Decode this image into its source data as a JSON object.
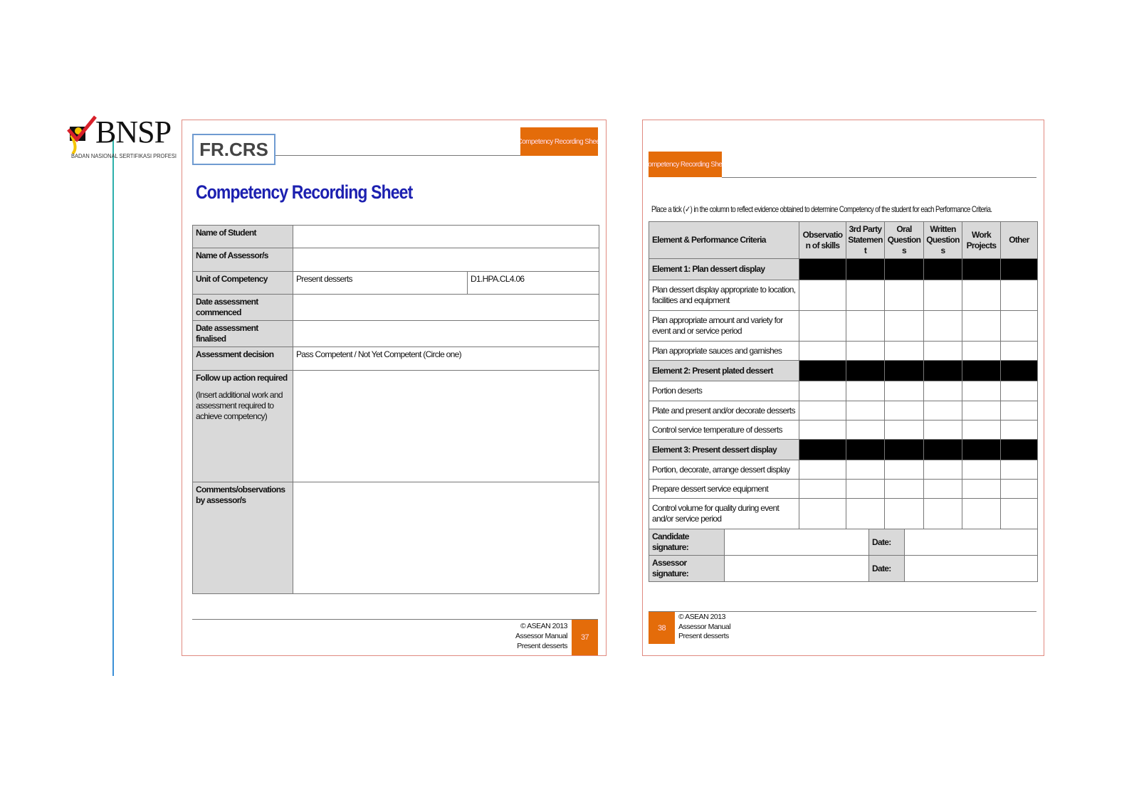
{
  "logo": {
    "name": "BNSP",
    "subtitle": "BADAN NASIONAL SERTIFIKASI PROFESI"
  },
  "left_page": {
    "form_code": "FR.CRS",
    "tab_label": "Competency Recording Sheet",
    "title": "Competency Recording Sheet",
    "rows": [
      {
        "label": "Name of Student",
        "value": ""
      },
      {
        "label": "Name of Assessor/s",
        "value": ""
      },
      {
        "label": "Unit of Competency",
        "value": "Present desserts",
        "code": "D1.HPA.CL4.06"
      },
      {
        "label": "Date assessment commenced",
        "value": ""
      },
      {
        "label": "Date assessment finalised",
        "value": ""
      },
      {
        "label": "Assessment decision",
        "value": "Pass Competent / Not Yet Competent (Circle one)"
      },
      {
        "label": "Follow up action required",
        "note": "(Insert additional work and assessment required to achieve competency)",
        "value": ""
      },
      {
        "label": "Comments/observations by assessor/s",
        "value": ""
      }
    ],
    "footer": {
      "copyright": "© ASEAN 2013",
      "manual": "Assessor Manual",
      "unit": "Present desserts",
      "page": "37"
    }
  },
  "right_page": {
    "tab_label": "Competency Recording Sheet",
    "instruction": "Place a tick (✓) in the column to reflect evidence obtained to determine Competency of the student for each Performance Criteria.",
    "headers": [
      "Element & Performance Criteria",
      "Observation of skills",
      "3rd Party Statement",
      "Oral Questions",
      "Written Questions",
      "Work Projects",
      "Other"
    ],
    "rows": [
      {
        "type": "element",
        "text": "Element 1: Plan dessert display"
      },
      {
        "type": "pc",
        "text": "Plan dessert display appropriate to location, facilities and equipment"
      },
      {
        "type": "pc",
        "text": "Plan appropriate amount and variety for event and or service period"
      },
      {
        "type": "pc",
        "text": "Plan appropriate sauces and garnishes"
      },
      {
        "type": "element",
        "text": "Element 2: Present plated dessert"
      },
      {
        "type": "pc",
        "text": "Portion deserts"
      },
      {
        "type": "pc",
        "text": "Plate and present and/or decorate desserts"
      },
      {
        "type": "pc",
        "text": "Control service temperature of desserts"
      },
      {
        "type": "element",
        "text": "Element 3: Present dessert display"
      },
      {
        "type": "pc",
        "text": "Portion, decorate, arrange dessert display"
      },
      {
        "type": "pc",
        "text": "Prepare dessert service equipment"
      },
      {
        "type": "pc",
        "text": "Control volume for quality during event and/or service period"
      }
    ],
    "signatures": [
      {
        "label": "Candidate signature:",
        "date_label": "Date:"
      },
      {
        "label": "Assessor signature:",
        "date_label": "Date:"
      }
    ],
    "footer": {
      "copyright": "© ASEAN 2013",
      "manual": "Assessor Manual",
      "unit": "Present desserts",
      "page": "38"
    }
  },
  "colors": {
    "accent": "#e46c0a",
    "title": "#1c20b0",
    "label_bg": "#d9d9d9",
    "page_border": "#e08a80"
  }
}
